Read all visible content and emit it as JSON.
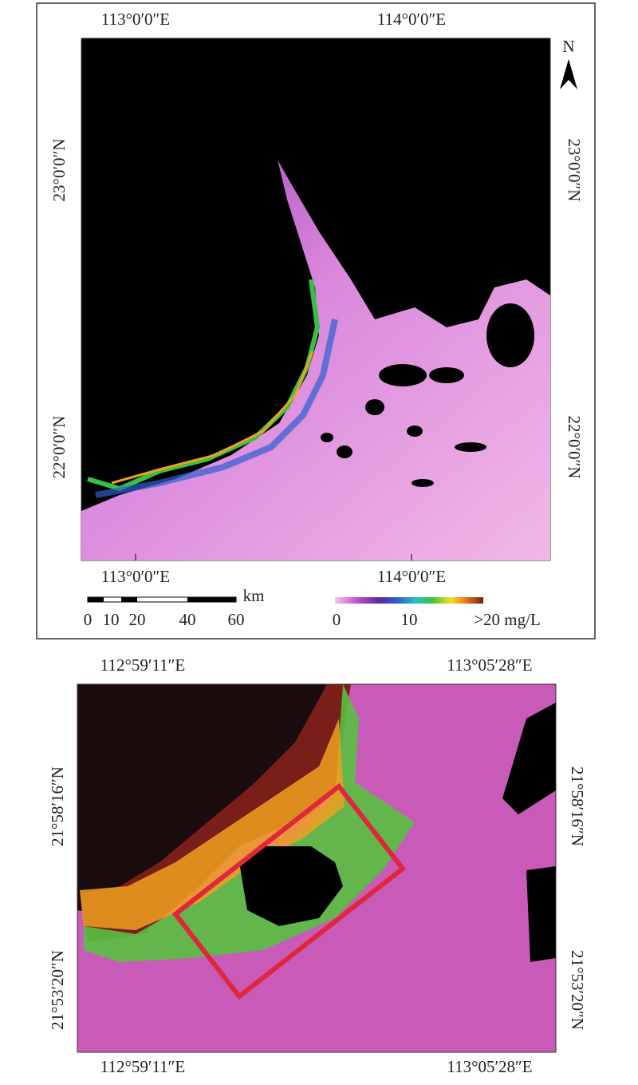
{
  "panel_a": {
    "top_labels": [
      "113°0′0″E",
      "114°0′0″E"
    ],
    "bottom_labels": [
      "113°0′0″E",
      "114°0′0″E"
    ],
    "left_labels": [
      "23°0′0″N",
      "22°0′0″N"
    ],
    "right_labels": [
      "23°0′0″N",
      "22°0′0″N"
    ],
    "north": "N",
    "scale_bar": {
      "unit": "km",
      "ticks": [
        "0",
        "10",
        "20",
        "40",
        "60"
      ]
    },
    "colorbar": {
      "labels": [
        "0",
        "10",
        ">20 mg/L"
      ]
    }
  },
  "panel_b": {
    "top_labels": [
      "112°59′11″E",
      "113°05′28″E"
    ],
    "bottom_labels": [
      "112°59′11″E",
      "113°05′28″E"
    ],
    "left_labels": [
      "21°58′16″N",
      "21°53′20″N"
    ],
    "right_labels": [
      "21°58′16″N",
      "21°53′20″N"
    ]
  }
}
